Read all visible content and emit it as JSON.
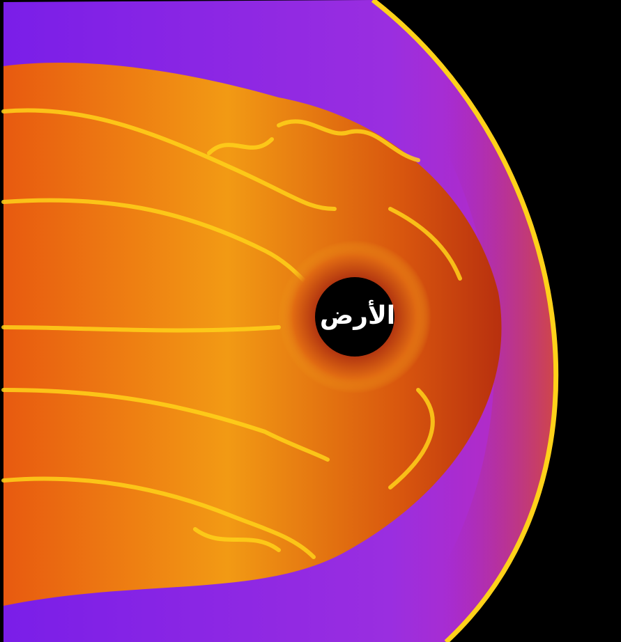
{
  "label": "الأرض"
}
